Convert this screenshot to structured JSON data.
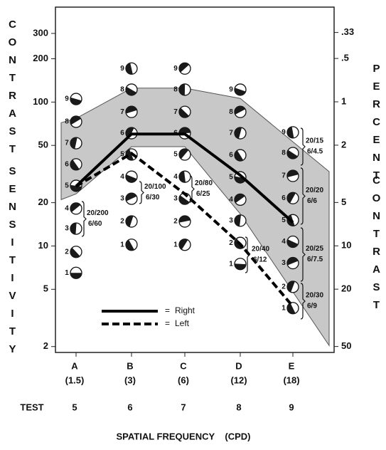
{
  "chart_data": {
    "type": "line",
    "y_label": [
      "CONTRAST",
      "SENSITIVITY"
    ],
    "y2_label": [
      "PERCENT",
      "CONTRAST"
    ],
    "x_label": "SPATIAL FREQUENCY    (CPD)",
    "test_label": "TEST",
    "categories": [
      "A",
      "B",
      "C",
      "D",
      "E"
    ],
    "frequencies": [
      "(1.5)",
      "(3)",
      "(6)",
      "(12)",
      "(18)"
    ],
    "tests": [
      5,
      6,
      7,
      8,
      9
    ],
    "log_scale": true,
    "ylim": [
      1.82,
      457
    ],
    "yticks": [
      2,
      5,
      10,
      20,
      50,
      100,
      200,
      300
    ],
    "y2lim": [
      55,
      0.22
    ],
    "y2ticks": [
      {
        "value": 0.33,
        "label": ".33"
      },
      {
        "value": 0.5,
        "label": ".5"
      },
      1,
      2,
      5,
      10,
      20,
      50
    ],
    "series": [
      {
        "name": "Right",
        "color": "#000000",
        "dash": false,
        "values": [
          26,
          60,
          60,
          31,
          14.6
        ]
      },
      {
        "name": "Left",
        "color": "#000000",
        "dash": true,
        "values": [
          26,
          44,
          23,
          10.3,
          3.8
        ]
      }
    ],
    "legend_symbol": "=",
    "band": {
      "color": "#c8c8c8",
      "upper": [
        77,
        125,
        125,
        106,
        53
      ],
      "lower": [
        23,
        49,
        49,
        16.7,
        4.8
      ]
    },
    "patch_numbers": [
      1,
      2,
      3,
      4,
      5,
      6,
      7,
      8,
      9
    ],
    "patches": [
      [
        6.5,
        9.1,
        13.2,
        18.2,
        26.2,
        36.9,
        51.8,
        73,
        105
      ],
      [
        10.2,
        14.8,
        21.3,
        30.3,
        43.2,
        60.8,
        85.5,
        122,
        171
      ],
      [
        10.2,
        14.8,
        21.3,
        30.3,
        43.2,
        60.8,
        85.5,
        122,
        171
      ],
      [
        7.5,
        10.5,
        15,
        21,
        30,
        42.7,
        60.8,
        85.5,
        122
      ],
      [
        3.7,
        5.2,
        7.6,
        10.7,
        15.1,
        21.5,
        30.7,
        44.2,
        61.6
      ]
    ],
    "acuity": [
      [
        [
          "20/200",
          "6/60"
        ]
      ],
      [
        [
          "20/100",
          "6/30"
        ]
      ],
      [
        [
          "20/80",
          "6/25"
        ]
      ],
      [
        [
          "20/40",
          "6/12"
        ]
      ],
      [
        [
          "20/15",
          "6/4.5"
        ],
        [
          "20/20",
          "6/6"
        ],
        [
          "20/25",
          "6/7.5"
        ],
        [
          "20/30",
          "6/9"
        ]
      ]
    ]
  }
}
